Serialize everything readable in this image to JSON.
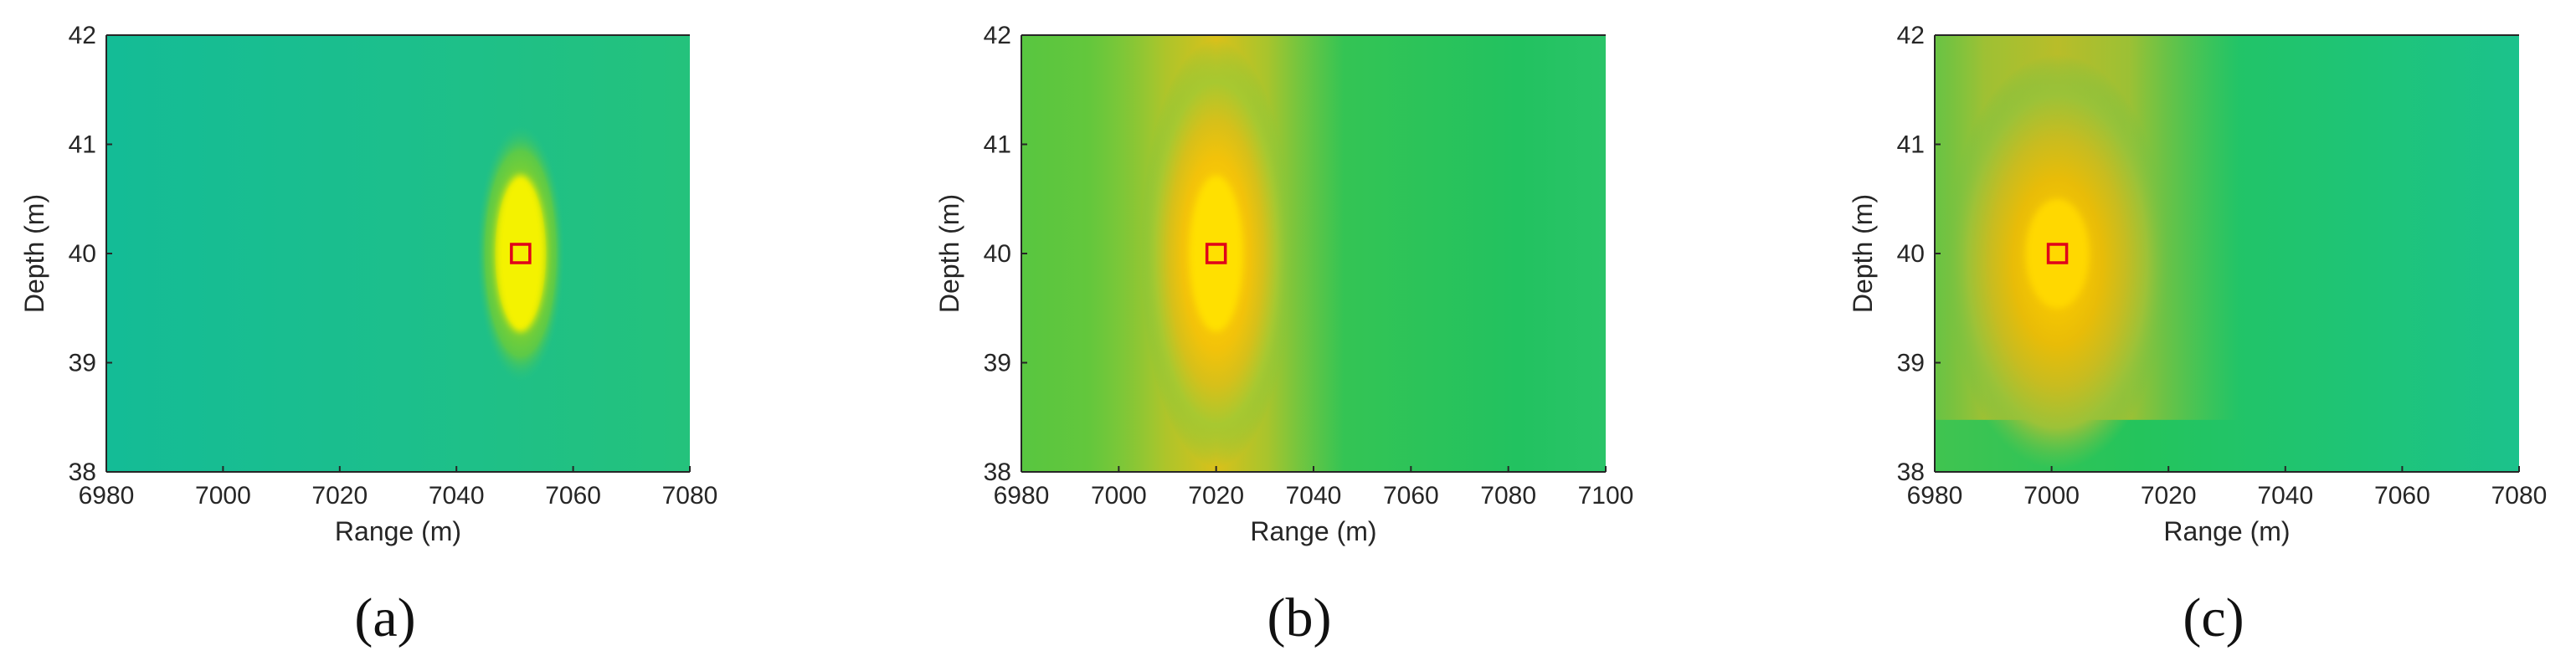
{
  "chart_data": [
    {
      "type": "heatmap",
      "panel_label": "(a)",
      "xlabel": "Range (m)",
      "ylabel": "Depth (m)",
      "xlim": [
        6980,
        7080
      ],
      "ylim": [
        38,
        42
      ],
      "xticks": [
        "6980",
        "7000",
        "7020",
        "7040",
        "7060",
        "7080"
      ],
      "yticks": [
        "38",
        "39",
        "40",
        "41",
        "42"
      ],
      "peak": {
        "range": 7051,
        "depth": 40,
        "range_width": 3.2,
        "depth_width": 0.8
      },
      "marker": {
        "range": 7051,
        "depth": 40,
        "color": "#e0001a"
      },
      "background_color": "#1ec08a"
    },
    {
      "type": "heatmap",
      "panel_label": "(b)",
      "xlabel": "Range (m)",
      "ylabel": "Depth (m)",
      "xlim": [
        6980,
        7100
      ],
      "ylim": [
        38,
        42
      ],
      "xticks": [
        "6980",
        "7000",
        "7020",
        "7040",
        "7060",
        "7080",
        "7100"
      ],
      "yticks": [
        "38",
        "39",
        "40",
        "41",
        "42"
      ],
      "peak": {
        "range": 7020,
        "depth": 40,
        "range_width": 5,
        "depth_width": 1.7
      },
      "marker": {
        "range": 7020,
        "depth": 40,
        "color": "#e0001a"
      },
      "background_color": "#30c860"
    },
    {
      "type": "heatmap",
      "panel_label": "(c)",
      "xlabel": "Range (m)",
      "ylabel": "Depth (m)",
      "xlim": [
        6980,
        7080
      ],
      "ylim": [
        38,
        42
      ],
      "xticks": [
        "6980",
        "7000",
        "7020",
        "7040",
        "7060",
        "7080"
      ],
      "yticks": [
        "38",
        "39",
        "40",
        "41",
        "42"
      ],
      "peak": {
        "range": 7001,
        "depth": 40,
        "range_width": 5,
        "depth_width": 1.0
      },
      "marker": {
        "range": 7001,
        "depth": 40,
        "color": "#e0001a"
      },
      "background_color": "#1fc47e"
    }
  ],
  "colors": {
    "low": "#18bea0",
    "mid": "#3cc84a",
    "high": "#f0f000",
    "peak": "#ffd700",
    "axis": "#262626",
    "marker": "#e0001a"
  }
}
